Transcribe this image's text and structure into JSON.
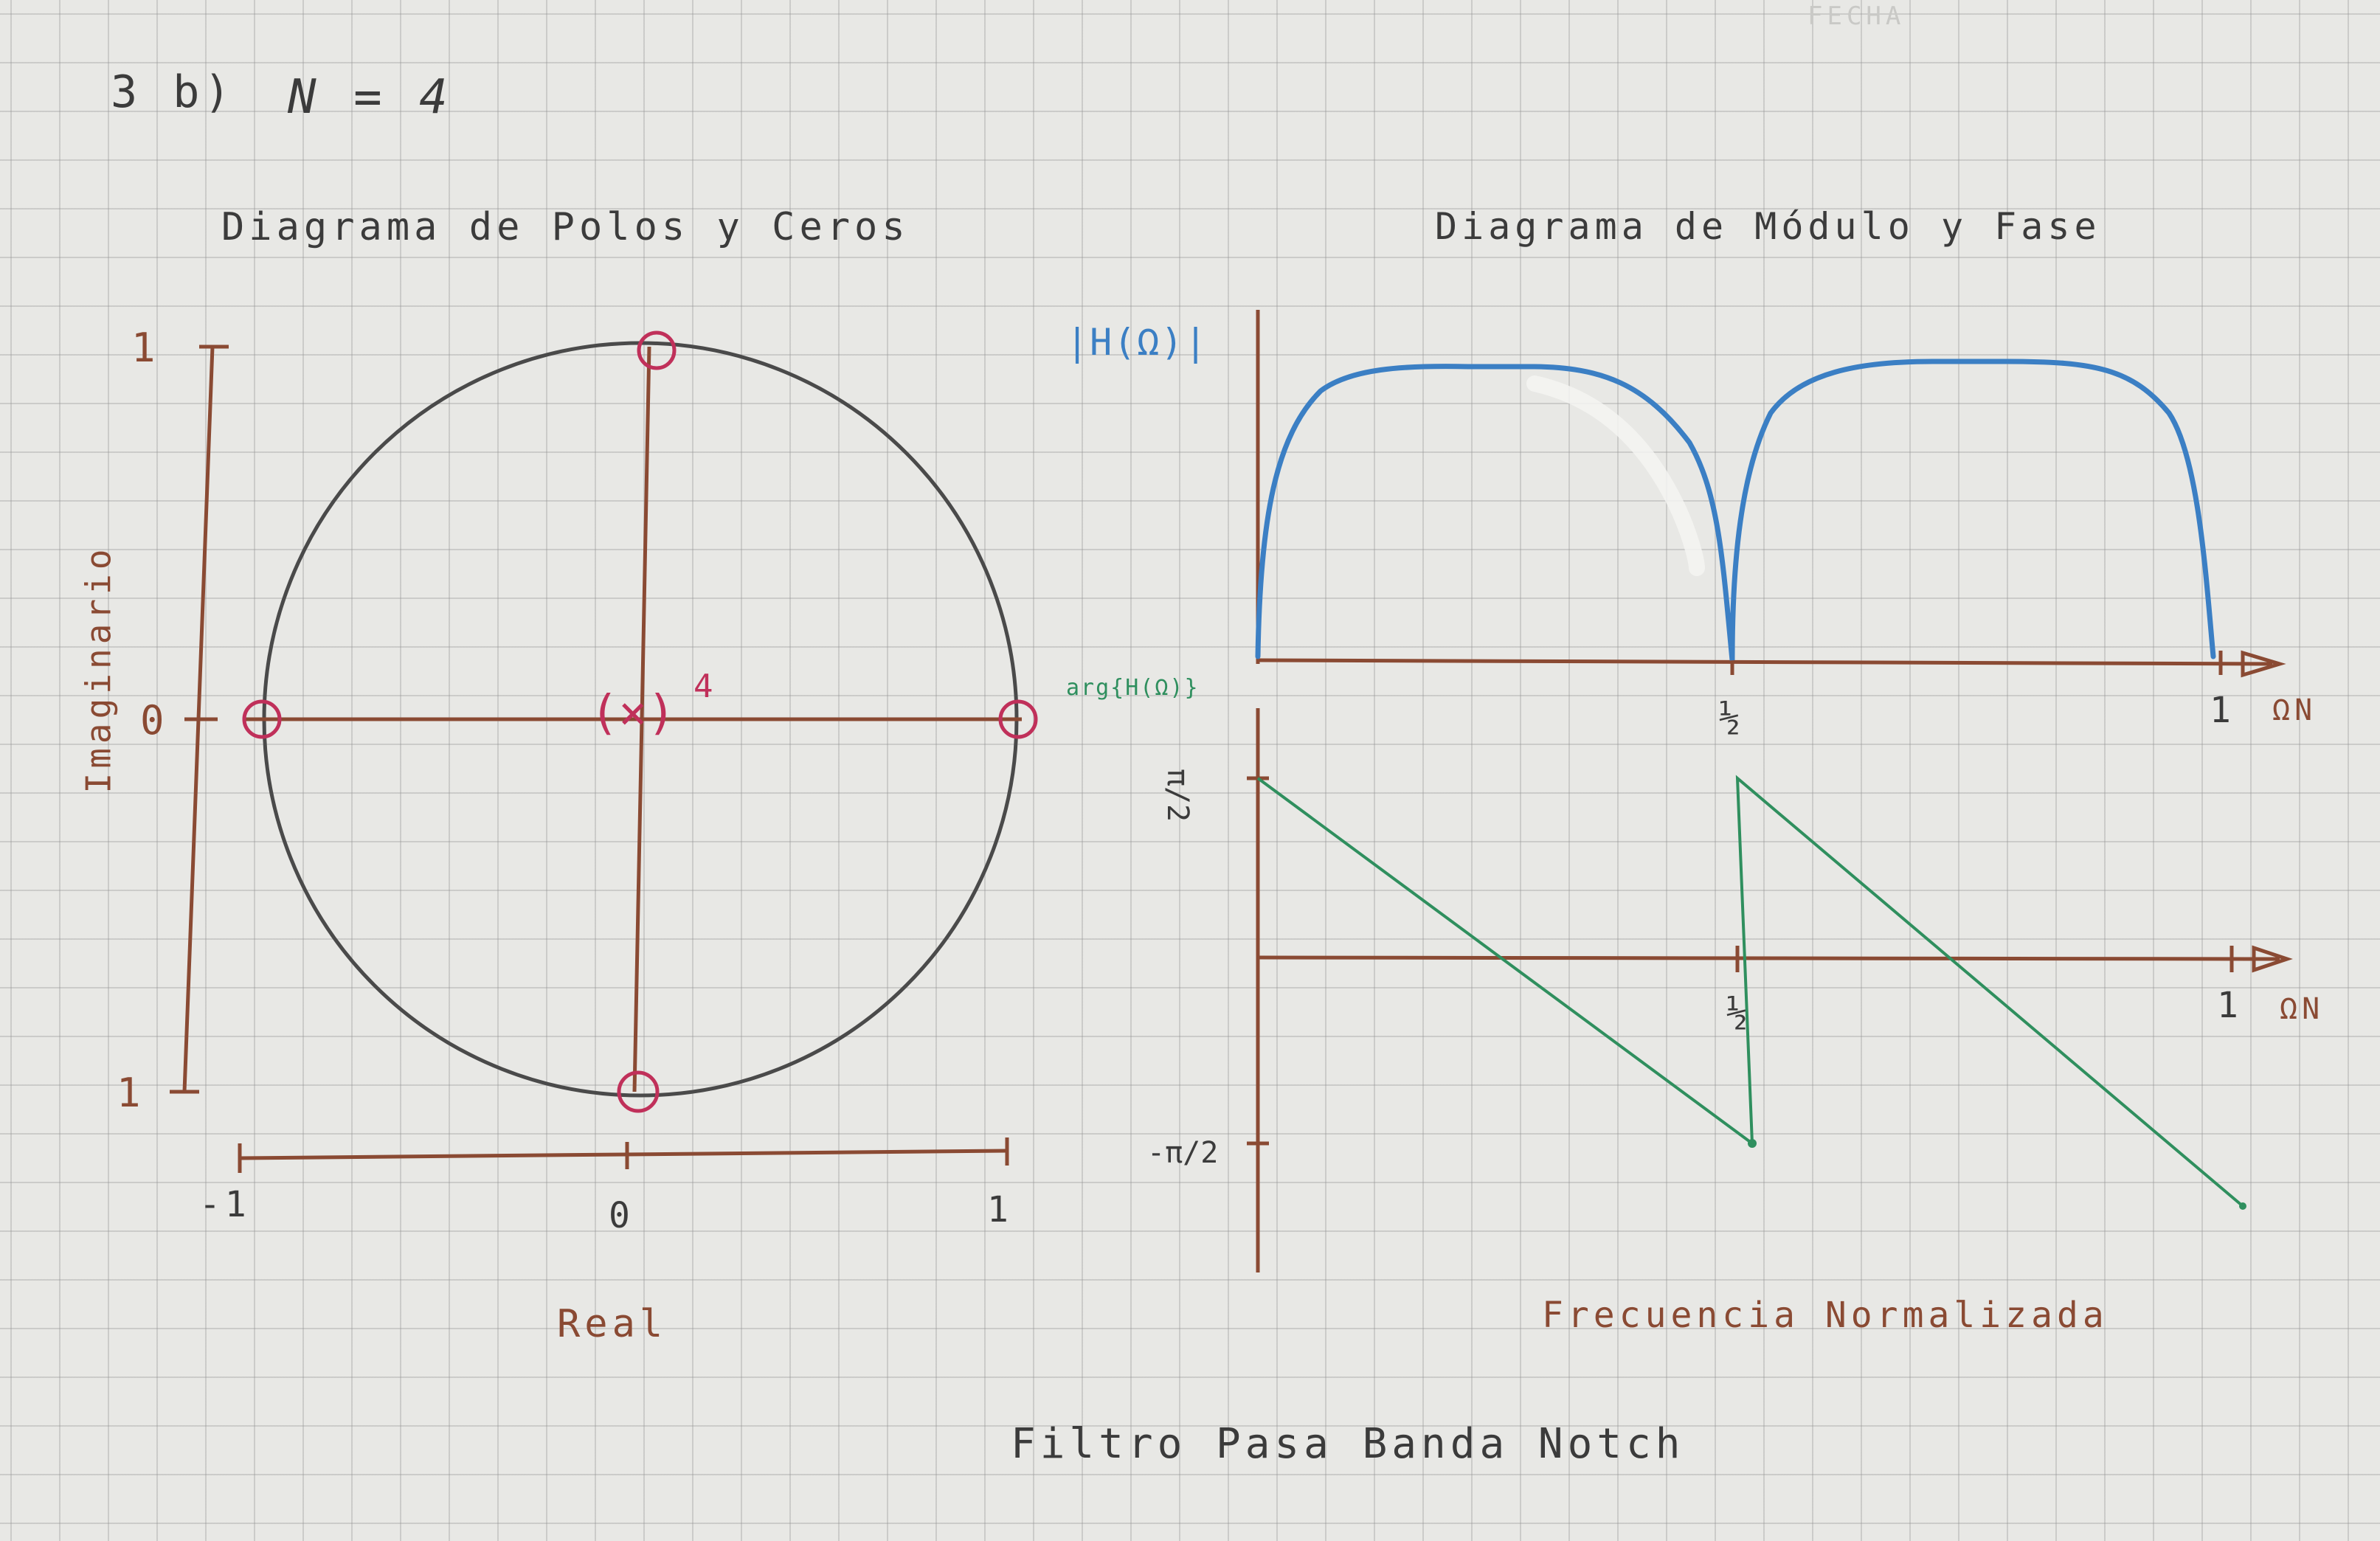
{
  "header": {
    "fecha_label": "FECHA",
    "problem": "3 b)",
    "n_value": "N = 4"
  },
  "pole_zero": {
    "title": "Diagrama de Polos y Ceros",
    "y_axis_label": "Imaginario",
    "x_axis_label": "Real",
    "y_ticks": [
      "1",
      "0",
      "1"
    ],
    "x_ticks": [
      "-1",
      "0",
      "1"
    ],
    "pole_multiplicity": "4",
    "pole_symbol": "(×)"
  },
  "mag_phase": {
    "title": "Diagrama de Módulo y Fase",
    "mag_label": "|H(Ω)|",
    "phase_label": "arg{H(Ω)}",
    "mag_x_ticks": [
      "½",
      "1"
    ],
    "mag_x_axis": "ΩN",
    "phase_x_ticks": [
      "½",
      "1"
    ],
    "phase_x_axis": "ΩN",
    "phase_y_ticks": [
      "π/2",
      "-π/2"
    ],
    "x_axis_title": "Frecuencia Normalizada"
  },
  "footer": {
    "caption": "Filtro Pasa Banda Notch"
  },
  "colors": {
    "axis": "#8a4a33",
    "circle": "#4a4a4a",
    "zero": "#c0305a",
    "magnitude": "#3b7fc4",
    "phase": "#2f8f5e",
    "grid": "#9a9a9a"
  }
}
